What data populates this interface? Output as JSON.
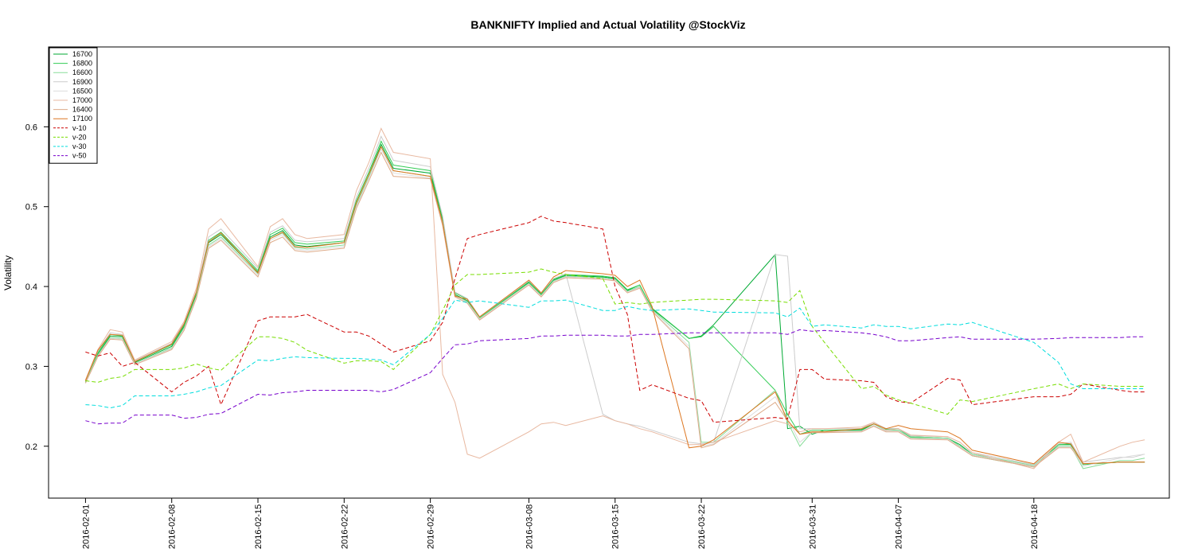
{
  "chart_data": {
    "type": "line",
    "title": "BANKNIFTY Implied and Actual Volatility @StockViz",
    "ylabel": "Volatility",
    "xlabel": "",
    "ylim": [
      0.135,
      0.7
    ],
    "yticks": [
      0.2,
      0.3,
      0.4,
      0.5,
      0.6
    ],
    "ytick_labels": [
      "0.2",
      "0.3",
      "0.4",
      "0.5",
      "0.6"
    ],
    "xticks": [
      "2016-02-01",
      "2016-02-08",
      "2016-02-15",
      "2016-02-22",
      "2016-02-29",
      "2016-03-08",
      "2016-03-15",
      "2016-03-22",
      "2016-03-31",
      "2016-04-07",
      "2016-04-18"
    ],
    "xlim": [
      "2016-01-29",
      "2016-04-29"
    ],
    "legend_position": "top-left",
    "grid": false,
    "x": [
      "2016-02-01",
      "2016-02-02",
      "2016-02-03",
      "2016-02-04",
      "2016-02-05",
      "2016-02-08",
      "2016-02-09",
      "2016-02-10",
      "2016-02-11",
      "2016-02-12",
      "2016-02-15",
      "2016-02-16",
      "2016-02-17",
      "2016-02-18",
      "2016-02-19",
      "2016-02-22",
      "2016-02-23",
      "2016-02-24",
      "2016-02-25",
      "2016-02-26",
      "2016-02-29",
      "2016-03-01",
      "2016-03-02",
      "2016-03-03",
      "2016-03-04",
      "2016-03-08",
      "2016-03-09",
      "2016-03-10",
      "2016-03-11",
      "2016-03-14",
      "2016-03-15",
      "2016-03-16",
      "2016-03-17",
      "2016-03-18",
      "2016-03-21",
      "2016-03-22",
      "2016-03-23",
      "2016-03-28",
      "2016-03-29",
      "2016-03-30",
      "2016-03-31",
      "2016-04-01",
      "2016-04-04",
      "2016-04-05",
      "2016-04-06",
      "2016-04-07",
      "2016-04-08",
      "2016-04-11",
      "2016-04-12",
      "2016-04-13",
      "2016-04-18",
      "2016-04-20",
      "2016-04-21",
      "2016-04-22",
      "2016-04-25",
      "2016-04-26",
      "2016-04-27"
    ],
    "series": [
      {
        "name": "16700",
        "color": "#00aa33",
        "dash": "",
        "values": [
          0.28,
          0.315,
          0.338,
          0.337,
          0.305,
          0.325,
          0.35,
          0.39,
          0.455,
          0.465,
          0.418,
          0.462,
          0.47,
          0.452,
          0.45,
          0.455,
          0.505,
          0.54,
          0.578,
          0.548,
          0.542,
          0.482,
          0.39,
          0.382,
          0.36,
          0.405,
          0.39,
          0.408,
          0.414,
          0.412,
          0.41,
          0.395,
          0.402,
          0.372,
          0.335,
          0.338,
          0.352,
          0.44,
          0.222,
          0.225,
          0.215,
          0.22,
          0.22,
          0.228,
          0.222,
          0.222,
          0.212,
          0.21,
          0.202,
          0.19,
          0.175,
          0.202,
          0.202,
          0.178,
          0.18,
          0.18,
          0.18
        ]
      },
      {
        "name": "16800",
        "color": "#33cc55",
        "dash": "",
        "values": [
          0.281,
          0.317,
          0.34,
          0.338,
          0.306,
          0.327,
          0.352,
          0.392,
          0.458,
          0.468,
          0.42,
          0.465,
          0.473,
          0.455,
          0.453,
          0.457,
          0.508,
          0.543,
          0.582,
          0.552,
          0.545,
          0.485,
          0.392,
          0.384,
          0.361,
          0.406,
          0.391,
          0.409,
          0.415,
          0.413,
          0.411,
          0.396,
          0.402,
          0.373,
          0.335,
          0.337,
          0.35,
          0.27,
          0.24,
          0.215,
          0.22,
          0.22,
          0.221,
          0.228,
          0.221,
          0.22,
          0.211,
          0.21,
          0.2,
          0.188,
          0.174,
          0.202,
          0.203,
          0.177,
          0.18,
          0.18,
          0.18
        ]
      },
      {
        "name": "16600",
        "color": "#88dd99",
        "dash": "",
        "values": [
          0.28,
          0.314,
          0.336,
          0.335,
          0.304,
          0.323,
          0.348,
          0.388,
          0.452,
          0.462,
          0.416,
          0.46,
          0.467,
          0.449,
          0.447,
          0.452,
          0.502,
          0.537,
          0.575,
          0.545,
          0.538,
          0.48,
          0.389,
          0.381,
          0.36,
          0.404,
          0.389,
          0.407,
          0.413,
          0.411,
          0.409,
          0.394,
          0.4,
          0.371,
          0.33,
          0.205,
          0.205,
          0.27,
          0.23,
          0.2,
          0.218,
          0.218,
          0.219,
          0.226,
          0.22,
          0.22,
          0.212,
          0.21,
          0.2,
          0.19,
          0.176,
          0.2,
          0.2,
          0.172,
          0.182,
          0.182,
          0.185
        ]
      },
      {
        "name": "16900",
        "color": "#cccccc",
        "dash": "",
        "values": [
          0.282,
          0.319,
          0.342,
          0.34,
          0.307,
          0.329,
          0.354,
          0.394,
          0.462,
          0.472,
          0.423,
          0.468,
          0.476,
          0.458,
          0.456,
          0.46,
          0.512,
          0.548,
          0.588,
          0.558,
          0.55,
          0.488,
          0.393,
          0.385,
          0.362,
          0.407,
          0.392,
          0.41,
          0.416,
          0.24,
          0.232,
          0.228,
          0.225,
          0.22,
          0.205,
          0.203,
          0.205,
          0.44,
          0.438,
          0.222,
          0.222,
          0.222,
          0.222,
          0.23,
          0.222,
          0.222,
          0.213,
          0.212,
          0.205,
          0.192,
          0.177,
          0.203,
          0.205,
          0.18,
          0.186,
          0.186,
          0.19
        ]
      },
      {
        "name": "16500",
        "color": "#dddddd",
        "dash": "",
        "values": [
          0.279,
          0.313,
          0.335,
          0.334,
          0.303,
          0.322,
          0.346,
          0.386,
          0.45,
          0.46,
          0.414,
          0.458,
          0.465,
          0.447,
          0.445,
          0.45,
          0.5,
          0.535,
          0.572,
          0.542,
          0.536,
          0.478,
          0.388,
          0.38,
          0.359,
          0.403,
          0.388,
          0.406,
          0.412,
          0.41,
          0.408,
          0.393,
          0.399,
          0.37,
          0.325,
          0.2,
          0.203,
          0.262,
          0.235,
          0.205,
          0.218,
          0.218,
          0.219,
          0.226,
          0.219,
          0.219,
          0.21,
          0.209,
          0.199,
          0.189,
          0.175,
          0.199,
          0.199,
          0.175,
          0.185,
          0.188,
          0.19
        ]
      },
      {
        "name": "17000",
        "color": "#e8b8a0",
        "dash": "",
        "values": [
          0.283,
          0.321,
          0.346,
          0.343,
          0.308,
          0.331,
          0.356,
          0.398,
          0.472,
          0.485,
          0.425,
          0.475,
          0.485,
          0.465,
          0.46,
          0.465,
          0.52,
          0.555,
          0.598,
          0.568,
          0.56,
          0.29,
          0.255,
          0.19,
          0.185,
          0.218,
          0.228,
          0.23,
          0.226,
          0.238,
          0.232,
          0.228,
          0.222,
          0.218,
          0.202,
          0.202,
          0.205,
          0.232,
          0.228,
          0.218,
          0.222,
          0.222,
          0.224,
          0.23,
          0.22,
          0.222,
          0.214,
          0.212,
          0.205,
          0.192,
          0.172,
          0.205,
          0.215,
          0.18,
          0.2,
          0.205,
          0.208
        ]
      },
      {
        "name": "16400",
        "color": "#ddaa88",
        "dash": "",
        "values": [
          0.279,
          0.312,
          0.334,
          0.333,
          0.302,
          0.321,
          0.345,
          0.385,
          0.448,
          0.458,
          0.412,
          0.455,
          0.462,
          0.445,
          0.443,
          0.448,
          0.498,
          0.532,
          0.568,
          0.538,
          0.535,
          0.476,
          0.387,
          0.379,
          0.358,
          0.402,
          0.387,
          0.405,
          0.411,
          0.409,
          0.407,
          0.392,
          0.398,
          0.369,
          0.322,
          0.198,
          0.202,
          0.255,
          0.232,
          0.215,
          0.217,
          0.217,
          0.218,
          0.225,
          0.218,
          0.218,
          0.209,
          0.208,
          0.198,
          0.188,
          0.174,
          0.198,
          0.198,
          0.178,
          0.18,
          0.18,
          0.18
        ]
      },
      {
        "name": "17100",
        "color": "#dd7722",
        "dash": "",
        "values": [
          0.282,
          0.32,
          0.34,
          0.339,
          0.306,
          0.328,
          0.353,
          0.393,
          0.456,
          0.467,
          0.417,
          0.46,
          0.468,
          0.45,
          0.449,
          0.455,
          0.505,
          0.54,
          0.575,
          0.545,
          0.538,
          0.48,
          0.388,
          0.384,
          0.362,
          0.408,
          0.392,
          0.412,
          0.42,
          0.416,
          0.414,
          0.4,
          0.408,
          0.375,
          0.198,
          0.2,
          0.208,
          0.268,
          0.232,
          0.215,
          0.218,
          0.218,
          0.222,
          0.228,
          0.222,
          0.226,
          0.222,
          0.218,
          0.21,
          0.195,
          0.178,
          0.205,
          0.203,
          0.178,
          0.18,
          0.18,
          0.18
        ]
      },
      {
        "name": "v-10",
        "color": "#cc0000",
        "dash": "5,3",
        "values": [
          0.318,
          0.313,
          0.317,
          0.3,
          0.305,
          0.268,
          0.28,
          0.288,
          0.3,
          0.252,
          0.357,
          0.362,
          0.362,
          0.362,
          0.365,
          0.343,
          0.343,
          0.338,
          0.328,
          0.318,
          0.332,
          0.355,
          0.41,
          0.46,
          0.465,
          0.48,
          0.488,
          0.482,
          0.48,
          0.472,
          0.4,
          0.365,
          0.27,
          0.277,
          0.26,
          0.257,
          0.23,
          0.236,
          0.234,
          0.296,
          0.296,
          0.284,
          0.282,
          0.28,
          0.262,
          0.256,
          0.254,
          0.285,
          0.283,
          0.252,
          0.262,
          0.262,
          0.265,
          0.278,
          0.27,
          0.268,
          0.268
        ]
      },
      {
        "name": "v-20",
        "color": "#77dd00",
        "dash": "5,3",
        "values": [
          0.282,
          0.28,
          0.285,
          0.287,
          0.296,
          0.296,
          0.298,
          0.303,
          0.298,
          0.295,
          0.337,
          0.337,
          0.335,
          0.33,
          0.32,
          0.304,
          0.307,
          0.307,
          0.306,
          0.296,
          0.34,
          0.37,
          0.402,
          0.415,
          0.415,
          0.418,
          0.422,
          0.418,
          0.415,
          0.41,
          0.378,
          0.38,
          0.378,
          0.38,
          0.383,
          0.384,
          0.384,
          0.382,
          0.38,
          0.395,
          0.35,
          0.33,
          0.272,
          0.275,
          0.264,
          0.258,
          0.254,
          0.24,
          0.258,
          0.256,
          0.272,
          0.278,
          0.272,
          0.278,
          0.275,
          0.275,
          0.275
        ]
      },
      {
        "name": "v-30",
        "color": "#00dddd",
        "dash": "5,3",
        "values": [
          0.252,
          0.251,
          0.248,
          0.251,
          0.263,
          0.263,
          0.265,
          0.268,
          0.273,
          0.276,
          0.308,
          0.307,
          0.31,
          0.312,
          0.311,
          0.31,
          0.31,
          0.309,
          0.308,
          0.302,
          0.34,
          0.36,
          0.383,
          0.38,
          0.382,
          0.374,
          0.382,
          0.382,
          0.383,
          0.37,
          0.37,
          0.375,
          0.372,
          0.37,
          0.372,
          0.37,
          0.368,
          0.367,
          0.362,
          0.373,
          0.35,
          0.352,
          0.348,
          0.352,
          0.35,
          0.35,
          0.347,
          0.353,
          0.352,
          0.355,
          0.33,
          0.305,
          0.278,
          0.272,
          0.272,
          0.272,
          0.272
        ]
      },
      {
        "name": "v-50",
        "color": "#7700cc",
        "dash": "5,3",
        "values": [
          0.232,
          0.228,
          0.229,
          0.229,
          0.239,
          0.239,
          0.235,
          0.236,
          0.24,
          0.241,
          0.265,
          0.264,
          0.267,
          0.268,
          0.27,
          0.27,
          0.27,
          0.27,
          0.268,
          0.271,
          0.292,
          0.31,
          0.327,
          0.328,
          0.332,
          0.335,
          0.338,
          0.338,
          0.339,
          0.339,
          0.338,
          0.338,
          0.34,
          0.34,
          0.342,
          0.342,
          0.342,
          0.342,
          0.34,
          0.346,
          0.344,
          0.345,
          0.342,
          0.34,
          0.337,
          0.332,
          0.332,
          0.336,
          0.337,
          0.334,
          0.334,
          0.335,
          0.336,
          0.336,
          0.336,
          0.337,
          0.337
        ]
      }
    ]
  }
}
